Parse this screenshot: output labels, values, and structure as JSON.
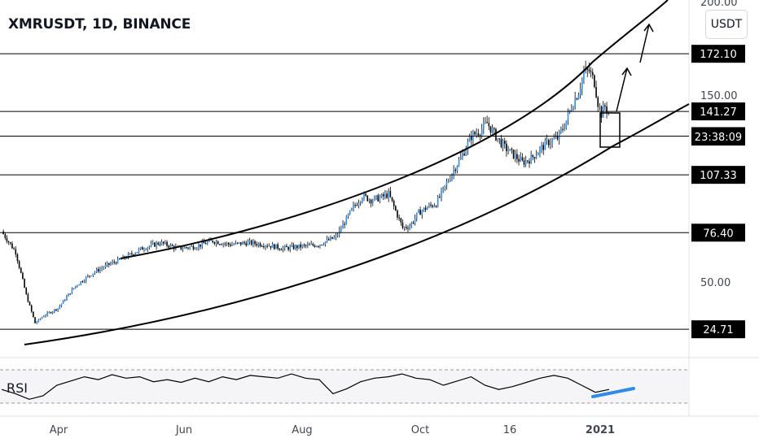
{
  "header": {
    "title": "XMRUSDT, 1D, BINANCE",
    "quote_currency": "USDT"
  },
  "indicator": {
    "name": "RSI"
  },
  "colors": {
    "candle_up": "#2f8be6",
    "candle_down": "#000000",
    "rsi_trend": "#2f8be6",
    "label_bg": "#000000",
    "label_text": "#ffffff"
  },
  "chart_data": {
    "type": "candlestick",
    "symbol": "XMRUSDT",
    "interval": "1D",
    "exchange": "BINANCE",
    "x_ticks": [
      "Apr",
      "Jun",
      "Aug",
      "Oct",
      "16",
      "2021"
    ],
    "y_ticks": [
      50.0,
      150.0,
      200.0
    ],
    "y_range": [
      10,
      205
    ],
    "price_levels": [
      172.1,
      141.27,
      128.06,
      107.33,
      76.4,
      24.71
    ],
    "countdown": "23:38:09",
    "close_approx": 141.27,
    "close_points": [
      [
        0,
        77
      ],
      [
        8,
        66
      ],
      [
        14,
        43
      ],
      [
        19,
        28
      ],
      [
        24,
        32
      ],
      [
        32,
        36
      ],
      [
        42,
        48
      ],
      [
        52,
        55
      ],
      [
        60,
        59
      ],
      [
        70,
        63
      ],
      [
        80,
        68
      ],
      [
        90,
        71
      ],
      [
        100,
        68
      ],
      [
        110,
        69
      ],
      [
        120,
        72
      ],
      [
        130,
        70
      ],
      [
        140,
        71
      ],
      [
        150,
        70
      ],
      [
        160,
        68
      ],
      [
        170,
        69
      ],
      [
        180,
        70
      ],
      [
        190,
        74
      ],
      [
        195,
        82
      ],
      [
        200,
        90
      ],
      [
        205,
        96
      ],
      [
        210,
        94
      ],
      [
        215,
        95
      ],
      [
        220,
        97
      ],
      [
        224,
        88
      ],
      [
        228,
        79
      ],
      [
        232,
        80
      ],
      [
        237,
        87
      ],
      [
        242,
        90
      ],
      [
        247,
        92
      ],
      [
        252,
        101
      ],
      [
        257,
        110
      ],
      [
        262,
        118
      ],
      [
        267,
        128
      ],
      [
        272,
        131
      ],
      [
        276,
        135
      ],
      [
        281,
        128
      ],
      [
        286,
        122
      ],
      [
        291,
        118
      ],
      [
        296,
        114
      ],
      [
        301,
        116
      ],
      [
        306,
        121
      ],
      [
        311,
        125
      ],
      [
        316,
        127
      ],
      [
        320,
        134
      ],
      [
        324,
        144
      ],
      [
        328,
        152
      ],
      [
        331,
        162
      ],
      [
        334,
        163
      ],
      [
        337,
        157
      ],
      [
        339,
        146
      ],
      [
        341,
        140
      ],
      [
        343,
        144
      ],
      [
        345,
        141
      ]
    ],
    "rsi_values": [
      44,
      38,
      30,
      35,
      50,
      56,
      62,
      58,
      65,
      60,
      62,
      55,
      58,
      54,
      60,
      55,
      62,
      58,
      64,
      62,
      60,
      66,
      60,
      58,
      38,
      45,
      55,
      60,
      62,
      66,
      60,
      58,
      50,
      56,
      62,
      50,
      44,
      48,
      54,
      60,
      64,
      60,
      50,
      40,
      44
    ],
    "rsi_range": [
      0,
      100
    ]
  }
}
